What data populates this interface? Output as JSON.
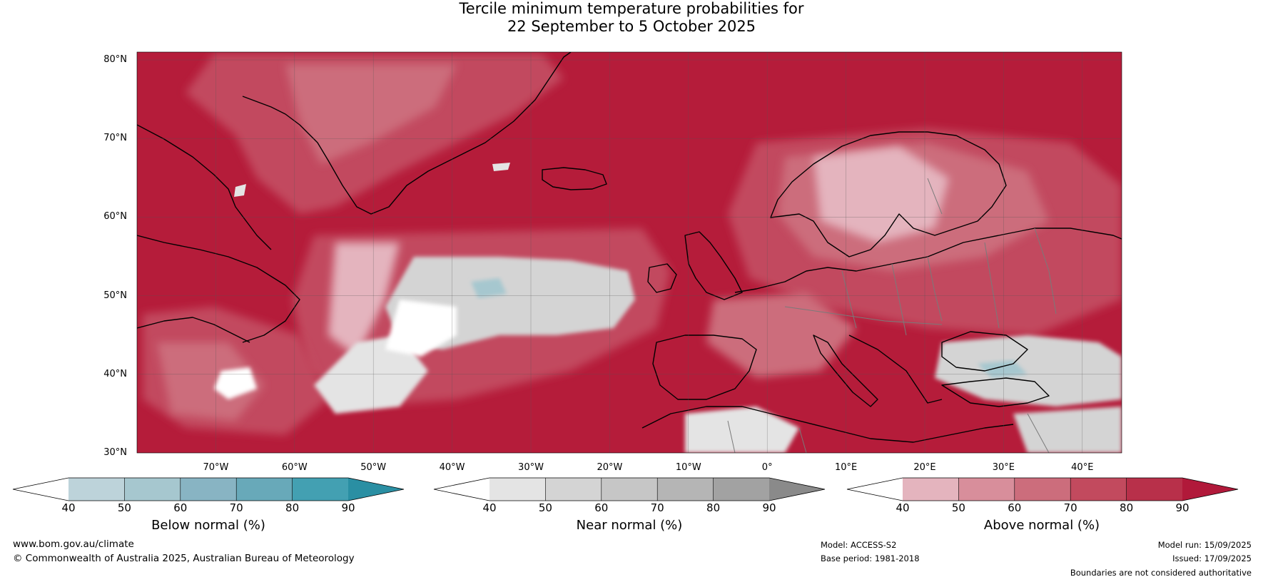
{
  "title": {
    "line1": "Tercile minimum temperature probabilities for",
    "line2": "22 September to 5 October 2025"
  },
  "map": {
    "lon_range": [
      -80,
      45
    ],
    "lat_range": [
      30,
      81
    ],
    "lat_ticks": [
      {
        "lat": 80,
        "label": "80°N"
      },
      {
        "lat": 70,
        "label": "70°N"
      },
      {
        "lat": 60,
        "label": "60°N"
      },
      {
        "lat": 50,
        "label": "50°N"
      },
      {
        "lat": 40,
        "label": "40°N"
      },
      {
        "lat": 30,
        "label": "30°N"
      }
    ],
    "lon_ticks": [
      {
        "lon": -70,
        "label": "70°W"
      },
      {
        "lon": -60,
        "label": "60°W"
      },
      {
        "lon": -50,
        "label": "50°W"
      },
      {
        "lon": -40,
        "label": "40°W"
      },
      {
        "lon": -30,
        "label": "30°W"
      },
      {
        "lon": -20,
        "label": "20°W"
      },
      {
        "lon": -10,
        "label": "10°W"
      },
      {
        "lon": 0,
        "label": "0°"
      },
      {
        "lon": 10,
        "label": "10°E"
      },
      {
        "lon": 20,
        "label": "20°E"
      },
      {
        "lon": 30,
        "label": "30°E"
      },
      {
        "lon": 40,
        "label": "40°E"
      }
    ],
    "background_color": "#b51c3a"
  },
  "colorbars": [
    {
      "label": "Below normal (%)",
      "ticks": [
        "40",
        "50",
        "60",
        "70",
        "80",
        "90"
      ],
      "colors": [
        "#ffffff",
        "#bdd3da",
        "#a6c7cf",
        "#88b4c3",
        "#68a9b9",
        "#43a0b2",
        "#2a8fa3"
      ]
    },
    {
      "label": "Near normal (%)",
      "ticks": [
        "40",
        "50",
        "60",
        "70",
        "80",
        "90"
      ],
      "colors": [
        "#ffffff",
        "#e4e4e4",
        "#d4d4d4",
        "#c6c6c6",
        "#b5b5b5",
        "#a2a2a2",
        "#8a8a8a"
      ]
    },
    {
      "label": "Above normal (%)",
      "ticks": [
        "40",
        "50",
        "60",
        "70",
        "80",
        "90"
      ],
      "colors": [
        "#ffffff",
        "#e4b4be",
        "#d88e9b",
        "#cc6d7c",
        "#c24a5e",
        "#b8304a",
        "#b1193a"
      ]
    }
  ],
  "footer": {
    "website": "www.bom.gov.au/climate",
    "copyright": "© Commonwealth of Australia 2025, Australian Bureau of Meteorology",
    "model": "Model: ACCESS-S2",
    "base_period": "Base period: 1981-2018",
    "model_run": "Model run: 15/09/2025",
    "issued": "Issued: 17/09/2025",
    "disclaimer": "Boundaries are not considered authoritative"
  }
}
